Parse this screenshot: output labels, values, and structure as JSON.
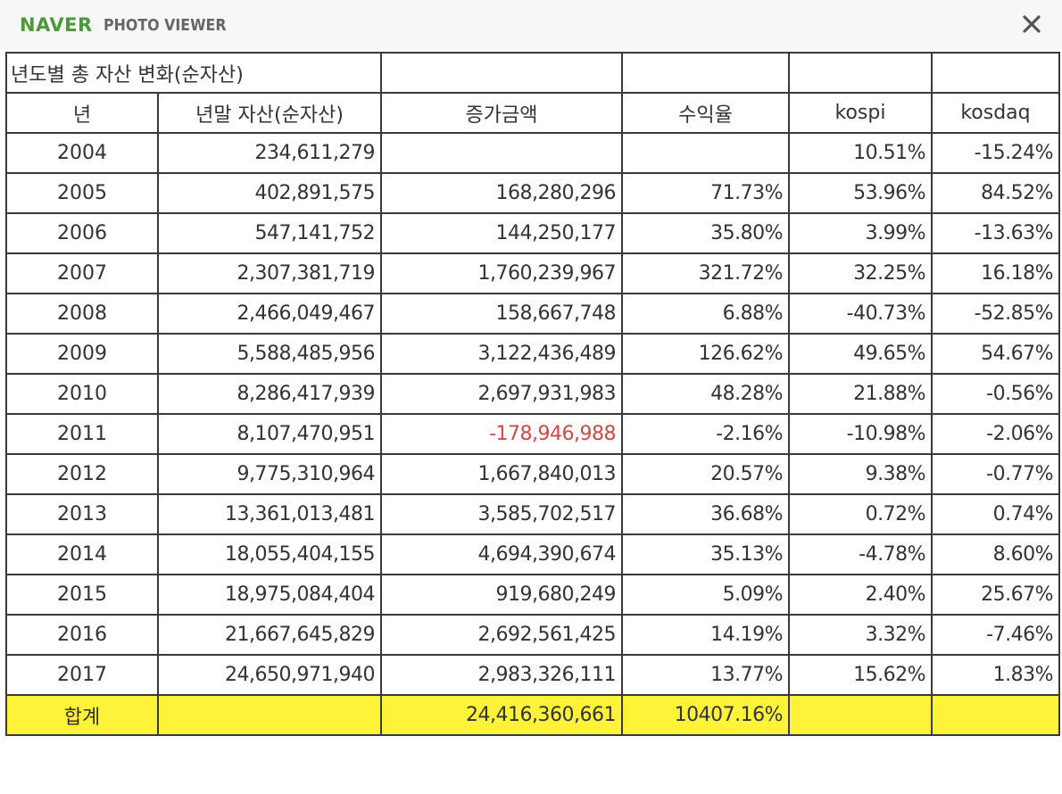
{
  "viewer": {
    "brand": "NAVER",
    "title": "PHOTO VIEWER",
    "close_icon": "close-icon"
  },
  "table": {
    "title": "년도별 총 자산 변화(순자산)",
    "headers": [
      "년",
      "년말 자산(순자산)",
      "증가금액",
      "수익율",
      "kospi",
      "kosdaq"
    ],
    "rows": [
      {
        "year": "2004",
        "assets": "234,611,279",
        "increase": "",
        "return": "",
        "kospi": "10.51%",
        "kosdaq": "-15.24%"
      },
      {
        "year": "2005",
        "assets": "402,891,575",
        "increase": "168,280,296",
        "return": "71.73%",
        "kospi": "53.96%",
        "kosdaq": "84.52%"
      },
      {
        "year": "2006",
        "assets": "547,141,752",
        "increase": "144,250,177",
        "return": "35.80%",
        "kospi": "3.99%",
        "kosdaq": "-13.63%"
      },
      {
        "year": "2007",
        "assets": "2,307,381,719",
        "increase": "1,760,239,967",
        "return": "321.72%",
        "kospi": "32.25%",
        "kosdaq": "16.18%"
      },
      {
        "year": "2008",
        "assets": "2,466,049,467",
        "increase": "158,667,748",
        "return": "6.88%",
        "kospi": "-40.73%",
        "kosdaq": "-52.85%"
      },
      {
        "year": "2009",
        "assets": "5,588,485,956",
        "increase": "3,122,436,489",
        "return": "126.62%",
        "kospi": "49.65%",
        "kosdaq": "54.67%"
      },
      {
        "year": "2010",
        "assets": "8,286,417,939",
        "increase": "2,697,931,983",
        "return": "48.28%",
        "kospi": "21.88%",
        "kosdaq": "-0.56%"
      },
      {
        "year": "2011",
        "assets": "8,107,470,951",
        "increase": "-178,946,988",
        "return": "-2.16%",
        "kospi": "-10.98%",
        "kosdaq": "-2.06%"
      },
      {
        "year": "2012",
        "assets": "9,775,310,964",
        "increase": "1,667,840,013",
        "return": "20.57%",
        "kospi": "9.38%",
        "kosdaq": "-0.77%"
      },
      {
        "year": "2013",
        "assets": "13,361,013,481",
        "increase": "3,585,702,517",
        "return": "36.68%",
        "kospi": "0.72%",
        "kosdaq": "0.74%"
      },
      {
        "year": "2014",
        "assets": "18,055,404,155",
        "increase": "4,694,390,674",
        "return": "35.13%",
        "kospi": "-4.78%",
        "kosdaq": "8.60%"
      },
      {
        "year": "2015",
        "assets": "18,975,084,404",
        "increase": "919,680,249",
        "return": "5.09%",
        "kospi": "2.40%",
        "kosdaq": "25.67%"
      },
      {
        "year": "2016",
        "assets": "21,667,645,829",
        "increase": "2,692,561,425",
        "return": "14.19%",
        "kospi": "3.32%",
        "kosdaq": "-7.46%"
      },
      {
        "year": "2017",
        "assets": "24,650,971,940",
        "increase": "2,983,326,111",
        "return": "13.77%",
        "kospi": "15.62%",
        "kosdaq": "1.83%"
      }
    ],
    "total": {
      "label": "합계",
      "assets": "",
      "increase": "24,416,360,661",
      "return": "10407.16%",
      "kospi": "",
      "kosdaq": ""
    }
  },
  "colors": {
    "brand": "#4a9a3a",
    "total_row_bg": "#fff33a",
    "negative_highlight": "#d04848"
  }
}
